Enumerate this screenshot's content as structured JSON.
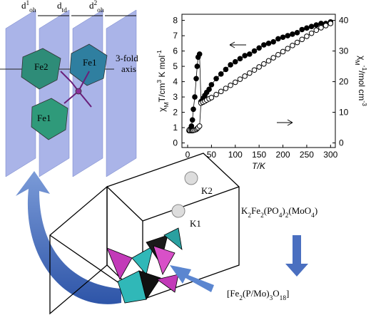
{
  "chart_data": {
    "type": "line",
    "x_label": "T/K",
    "y_label": [
      "χ",
      "M",
      "T/cm",
      "3",
      " K mol",
      "-1"
    ],
    "y2_label": [
      "χ",
      "M",
      "-1",
      "/mol cm",
      "-3"
    ],
    "xlim": [
      -12,
      310
    ],
    "xticks": [
      0,
      50,
      100,
      150,
      200,
      250,
      300
    ],
    "ylim": [
      -0.3,
      8.4
    ],
    "yticks": [
      0,
      1,
      2,
      3,
      4,
      5,
      6,
      7,
      8
    ],
    "y2lim": [
      -1.5,
      42
    ],
    "y2ticks": [
      0,
      10,
      20,
      30,
      40
    ],
    "series": [
      {
        "marker": "filled",
        "color": "#000000",
        "x": [
          3,
          5,
          8,
          10,
          12,
          15,
          18,
          20,
          22,
          25,
          28,
          32,
          36,
          40,
          45,
          50,
          60,
          70,
          80,
          90,
          100,
          110,
          120,
          130,
          140,
          150,
          160,
          170,
          180,
          190,
          200,
          210,
          220,
          230,
          240,
          250,
          260,
          270,
          280,
          290,
          300
        ],
        "values": [
          0.8,
          0.9,
          1.1,
          1.5,
          2.2,
          3.0,
          4.2,
          5.0,
          5.6,
          5.8,
          2.7,
          2.9,
          3.1,
          3.3,
          3.5,
          3.8,
          4.2,
          4.5,
          4.8,
          5.1,
          5.3,
          5.5,
          5.7,
          5.8,
          6.0,
          6.2,
          6.4,
          6.5,
          6.6,
          6.8,
          6.9,
          7.0,
          7.1,
          7.2,
          7.4,
          7.5,
          7.6,
          7.7,
          7.8,
          7.8,
          7.9
        ]
      },
      {
        "marker": "open",
        "color": "#000000",
        "axis": "y2",
        "x": [
          3,
          5,
          8,
          10,
          12,
          15,
          18,
          20,
          22,
          25,
          28,
          32,
          36,
          40,
          45,
          50,
          60,
          70,
          80,
          90,
          100,
          110,
          120,
          130,
          140,
          150,
          160,
          170,
          180,
          190,
          200,
          210,
          220,
          230,
          240,
          250,
          260,
          270,
          280,
          290,
          300
        ],
        "values": [
          4.2,
          4.0,
          4.0,
          4.0,
          4.1,
          4.2,
          4.4,
          4.7,
          5.0,
          5.5,
          13,
          13.3,
          13.6,
          14,
          14.4,
          14.8,
          15.8,
          16.8,
          17.8,
          18.8,
          19.8,
          20.8,
          21.8,
          22.8,
          23.8,
          24.8,
          25.8,
          26.8,
          27.8,
          28.8,
          29.8,
          30.8,
          31.8,
          32.8,
          33.8,
          34.8,
          35.8,
          36.8,
          37.6,
          38.3,
          39
        ]
      }
    ]
  },
  "diagram": {
    "spacings": [
      [
        "d",
        "1",
        "oh"
      ],
      [
        "d",
        "td"
      ],
      [
        "d",
        "2",
        "oh"
      ]
    ],
    "axis_label": [
      "3-fold",
      "axis"
    ],
    "ions": [
      "Fe2",
      "Fe1",
      "Fe1"
    ],
    "sites": [
      "K2",
      "K1"
    ],
    "compound": [
      "K",
      "2",
      "Fe",
      "2",
      "(PO",
      "4",
      ")",
      "2",
      "(MoO",
      "4",
      ")"
    ],
    "unit": [
      "[Fe",
      "2",
      "(P/Mo)",
      "3",
      "O",
      "18",
      "]"
    ]
  }
}
